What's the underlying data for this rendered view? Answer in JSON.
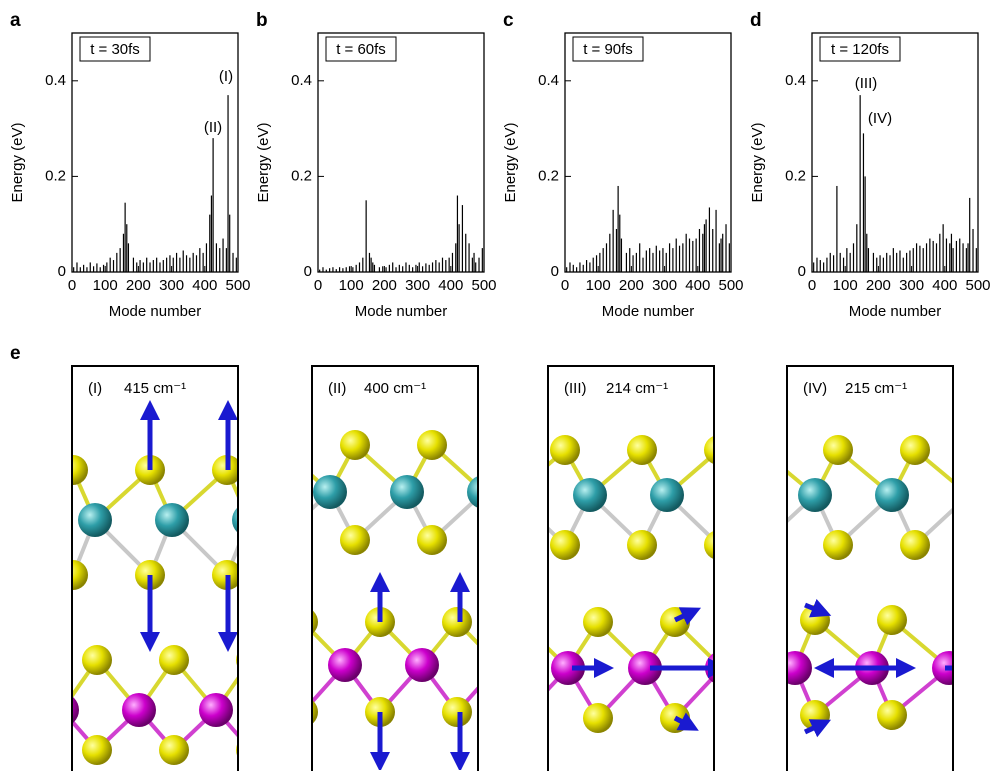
{
  "chart_data": [
    {
      "type": "bar",
      "panel_label": "a",
      "annotation": "t = 30fs",
      "peak_labels": [
        "(I)",
        "(II)"
      ],
      "xlabel": "Mode number",
      "ylabel": "Energy (eV)",
      "color": "#000000",
      "xlim": [
        0,
        500
      ],
      "xticks": [
        0,
        100,
        200,
        300,
        400,
        500
      ],
      "ylim": [
        0,
        0.5
      ],
      "yticks": [
        0,
        0.2,
        0.4
      ],
      "x": [
        5,
        15,
        25,
        35,
        45,
        55,
        65,
        75,
        85,
        95,
        105,
        115,
        125,
        135,
        145,
        155,
        160,
        165,
        170,
        185,
        195,
        205,
        215,
        225,
        235,
        245,
        255,
        265,
        275,
        285,
        295,
        305,
        315,
        325,
        335,
        345,
        355,
        365,
        375,
        385,
        395,
        405,
        415,
        420,
        425,
        435,
        445,
        455,
        465,
        470,
        475,
        485,
        495
      ],
      "values": [
        0.01,
        0.02,
        0.01,
        0.015,
        0.01,
        0.02,
        0.012,
        0.018,
        0.01,
        0.015,
        0.02,
        0.03,
        0.025,
        0.04,
        0.05,
        0.08,
        0.145,
        0.1,
        0.06,
        0.03,
        0.02,
        0.025,
        0.02,
        0.03,
        0.02,
        0.025,
        0.03,
        0.02,
        0.025,
        0.03,
        0.035,
        0.03,
        0.04,
        0.03,
        0.045,
        0.035,
        0.03,
        0.04,
        0.035,
        0.05,
        0.04,
        0.06,
        0.12,
        0.16,
        0.28,
        0.06,
        0.05,
        0.07,
        0.05,
        0.37,
        0.12,
        0.04,
        0.03
      ]
    },
    {
      "type": "bar",
      "panel_label": "b",
      "annotation": "t = 60fs",
      "xlabel": "Mode number",
      "ylabel": "Energy (eV)",
      "color": "#000000",
      "xlim": [
        0,
        500
      ],
      "xticks": [
        0,
        100,
        200,
        300,
        400,
        500
      ],
      "ylim": [
        0,
        0.5
      ],
      "yticks": [
        0,
        0.2,
        0.4
      ],
      "x": [
        5,
        15,
        25,
        35,
        45,
        55,
        65,
        75,
        85,
        95,
        105,
        115,
        125,
        135,
        145,
        155,
        160,
        165,
        170,
        185,
        195,
        205,
        215,
        225,
        235,
        245,
        255,
        265,
        275,
        285,
        295,
        305,
        315,
        325,
        335,
        345,
        355,
        365,
        375,
        385,
        395,
        405,
        415,
        420,
        425,
        435,
        445,
        455,
        465,
        470,
        475,
        485,
        495
      ],
      "values": [
        0.005,
        0.01,
        0.005,
        0.008,
        0.01,
        0.006,
        0.01,
        0.008,
        0.01,
        0.012,
        0.01,
        0.015,
        0.02,
        0.03,
        0.15,
        0.04,
        0.03,
        0.02,
        0.015,
        0.01,
        0.012,
        0.01,
        0.015,
        0.02,
        0.01,
        0.015,
        0.012,
        0.02,
        0.015,
        0.01,
        0.015,
        0.02,
        0.012,
        0.018,
        0.015,
        0.02,
        0.025,
        0.02,
        0.03,
        0.025,
        0.03,
        0.04,
        0.06,
        0.16,
        0.1,
        0.14,
        0.08,
        0.06,
        0.03,
        0.04,
        0.02,
        0.03,
        0.05
      ]
    },
    {
      "type": "bar",
      "panel_label": "c",
      "annotation": "t = 90fs",
      "xlabel": "Mode number",
      "ylabel": "Energy (eV)",
      "color": "#000000",
      "xlim": [
        0,
        500
      ],
      "xticks": [
        0,
        100,
        200,
        300,
        400,
        500
      ],
      "ylim": [
        0,
        0.5
      ],
      "yticks": [
        0,
        0.2,
        0.4
      ],
      "x": [
        5,
        15,
        25,
        35,
        45,
        55,
        65,
        75,
        85,
        95,
        105,
        115,
        125,
        135,
        145,
        155,
        160,
        165,
        170,
        185,
        195,
        205,
        215,
        225,
        235,
        245,
        255,
        265,
        275,
        285,
        295,
        305,
        315,
        325,
        335,
        345,
        355,
        365,
        375,
        385,
        395,
        405,
        415,
        420,
        425,
        435,
        445,
        455,
        465,
        470,
        475,
        485,
        495
      ],
      "values": [
        0.01,
        0.02,
        0.015,
        0.01,
        0.02,
        0.015,
        0.025,
        0.02,
        0.03,
        0.035,
        0.04,
        0.05,
        0.06,
        0.08,
        0.13,
        0.09,
        0.18,
        0.12,
        0.07,
        0.04,
        0.05,
        0.035,
        0.04,
        0.06,
        0.03,
        0.045,
        0.05,
        0.04,
        0.055,
        0.045,
        0.05,
        0.04,
        0.06,
        0.05,
        0.07,
        0.055,
        0.06,
        0.08,
        0.07,
        0.065,
        0.07,
        0.09,
        0.08,
        0.1,
        0.11,
        0.135,
        0.09,
        0.13,
        0.06,
        0.07,
        0.08,
        0.1,
        0.06
      ]
    },
    {
      "type": "bar",
      "panel_label": "d",
      "annotation": "t = 120fs",
      "peak_labels": [
        "(III)",
        "(IV)"
      ],
      "xlabel": "Mode number",
      "ylabel": "Energy (eV)",
      "color": "#000000",
      "xlim": [
        0,
        500
      ],
      "xticks": [
        0,
        100,
        200,
        300,
        400,
        500
      ],
      "ylim": [
        0,
        0.5
      ],
      "yticks": [
        0,
        0.2,
        0.4
      ],
      "x": [
        5,
        15,
        25,
        35,
        45,
        55,
        65,
        75,
        85,
        95,
        105,
        115,
        125,
        135,
        145,
        155,
        160,
        165,
        170,
        185,
        195,
        205,
        215,
        225,
        235,
        245,
        255,
        265,
        275,
        285,
        295,
        305,
        315,
        325,
        335,
        345,
        355,
        365,
        375,
        385,
        395,
        405,
        415,
        420,
        425,
        435,
        445,
        455,
        465,
        470,
        475,
        485,
        495
      ],
      "values": [
        0.02,
        0.03,
        0.025,
        0.02,
        0.03,
        0.04,
        0.035,
        0.18,
        0.04,
        0.03,
        0.05,
        0.04,
        0.06,
        0.1,
        0.37,
        0.29,
        0.2,
        0.08,
        0.05,
        0.04,
        0.03,
        0.035,
        0.03,
        0.04,
        0.035,
        0.05,
        0.04,
        0.045,
        0.03,
        0.04,
        0.045,
        0.05,
        0.06,
        0.055,
        0.05,
        0.06,
        0.07,
        0.065,
        0.06,
        0.08,
        0.1,
        0.07,
        0.06,
        0.08,
        0.05,
        0.065,
        0.07,
        0.06,
        0.05,
        0.06,
        0.155,
        0.09,
        0.05
      ]
    }
  ],
  "panel_e": {
    "label": "e",
    "modes": [
      {
        "label": "(I)",
        "frequency": "415 cm⁻¹"
      },
      {
        "label": "(II)",
        "frequency": "400 cm⁻¹"
      },
      {
        "label": "(III)",
        "frequency": "214 cm⁻¹"
      },
      {
        "label": "(IV)",
        "frequency": "215 cm⁻¹"
      }
    ]
  }
}
